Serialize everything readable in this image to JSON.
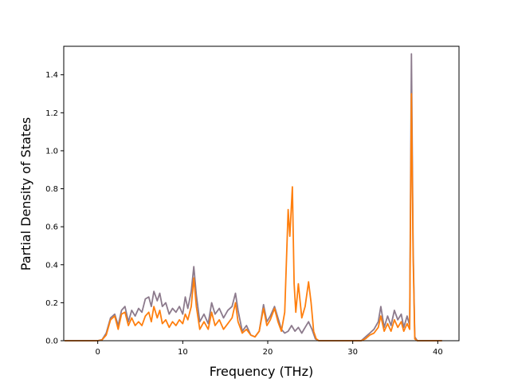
{
  "chart_data": {
    "type": "line",
    "title": "",
    "xlabel": "Frequency (THz)",
    "ylabel": "Partial Density of States",
    "xlim": [
      -4,
      42.5
    ],
    "ylim": [
      0,
      1.55
    ],
    "xticks": [
      0,
      10,
      20,
      30,
      40
    ],
    "yticks": [
      0.0,
      0.2,
      0.4,
      0.6,
      0.8,
      1.0,
      1.2,
      1.4
    ],
    "grid": false,
    "legend": "none",
    "series": [
      {
        "color": "#8c7a8c",
        "points": [
          [
            -3.9,
            0
          ],
          [
            0,
            0
          ],
          [
            0.5,
            0.005
          ],
          [
            1.0,
            0.04
          ],
          [
            1.5,
            0.12
          ],
          [
            2.0,
            0.14
          ],
          [
            2.4,
            0.08
          ],
          [
            2.8,
            0.16
          ],
          [
            3.2,
            0.18
          ],
          [
            3.6,
            0.1
          ],
          [
            4.0,
            0.16
          ],
          [
            4.4,
            0.13
          ],
          [
            4.8,
            0.17
          ],
          [
            5.2,
            0.15
          ],
          [
            5.6,
            0.22
          ],
          [
            6.0,
            0.23
          ],
          [
            6.3,
            0.18
          ],
          [
            6.6,
            0.26
          ],
          [
            7.0,
            0.21
          ],
          [
            7.3,
            0.25
          ],
          [
            7.6,
            0.18
          ],
          [
            8.0,
            0.2
          ],
          [
            8.4,
            0.14
          ],
          [
            8.8,
            0.17
          ],
          [
            9.2,
            0.15
          ],
          [
            9.6,
            0.18
          ],
          [
            10.0,
            0.14
          ],
          [
            10.3,
            0.23
          ],
          [
            10.6,
            0.17
          ],
          [
            11.0,
            0.26
          ],
          [
            11.3,
            0.39
          ],
          [
            11.6,
            0.24
          ],
          [
            12.0,
            0.1
          ],
          [
            12.5,
            0.14
          ],
          [
            13.0,
            0.09
          ],
          [
            13.4,
            0.2
          ],
          [
            13.8,
            0.14
          ],
          [
            14.3,
            0.17
          ],
          [
            14.8,
            0.12
          ],
          [
            15.3,
            0.16
          ],
          [
            15.8,
            0.18
          ],
          [
            16.2,
            0.25
          ],
          [
            16.5,
            0.16
          ],
          [
            17.0,
            0.05
          ],
          [
            17.5,
            0.08
          ],
          [
            18.0,
            0.03
          ],
          [
            18.5,
            0.02
          ],
          [
            19.0,
            0.05
          ],
          [
            19.5,
            0.19
          ],
          [
            19.9,
            0.1
          ],
          [
            20.3,
            0.13
          ],
          [
            20.8,
            0.18
          ],
          [
            21.2,
            0.12
          ],
          [
            21.6,
            0.06
          ],
          [
            22.0,
            0.04
          ],
          [
            22.4,
            0.05
          ],
          [
            22.8,
            0.08
          ],
          [
            23.2,
            0.05
          ],
          [
            23.6,
            0.07
          ],
          [
            24.0,
            0.04
          ],
          [
            24.4,
            0.07
          ],
          [
            24.8,
            0.1
          ],
          [
            25.2,
            0.06
          ],
          [
            25.6,
            0.01
          ],
          [
            26.0,
            0
          ],
          [
            31.0,
            0
          ],
          [
            31.5,
            0.02
          ],
          [
            32.0,
            0.04
          ],
          [
            32.5,
            0.06
          ],
          [
            33.0,
            0.1
          ],
          [
            33.3,
            0.18
          ],
          [
            33.7,
            0.07
          ],
          [
            34.1,
            0.13
          ],
          [
            34.5,
            0.08
          ],
          [
            34.9,
            0.16
          ],
          [
            35.3,
            0.11
          ],
          [
            35.7,
            0.14
          ],
          [
            36.0,
            0.07
          ],
          [
            36.4,
            0.13
          ],
          [
            36.7,
            0.08
          ],
          [
            36.9,
            1.51
          ],
          [
            37.1,
            0.5
          ],
          [
            37.3,
            0.02
          ],
          [
            37.6,
            0
          ],
          [
            40.5,
            0
          ]
        ]
      },
      {
        "color": "#ff7f0e",
        "points": [
          [
            -3.9,
            0
          ],
          [
            0,
            0
          ],
          [
            0.5,
            0.004
          ],
          [
            1.0,
            0.03
          ],
          [
            1.5,
            0.11
          ],
          [
            2.0,
            0.13
          ],
          [
            2.4,
            0.06
          ],
          [
            2.8,
            0.14
          ],
          [
            3.2,
            0.15
          ],
          [
            3.6,
            0.08
          ],
          [
            4.0,
            0.12
          ],
          [
            4.4,
            0.08
          ],
          [
            4.8,
            0.1
          ],
          [
            5.2,
            0.08
          ],
          [
            5.6,
            0.13
          ],
          [
            6.0,
            0.15
          ],
          [
            6.3,
            0.1
          ],
          [
            6.6,
            0.18
          ],
          [
            7.0,
            0.12
          ],
          [
            7.3,
            0.16
          ],
          [
            7.6,
            0.09
          ],
          [
            8.0,
            0.11
          ],
          [
            8.4,
            0.07
          ],
          [
            8.8,
            0.1
          ],
          [
            9.2,
            0.08
          ],
          [
            9.6,
            0.11
          ],
          [
            10.0,
            0.09
          ],
          [
            10.3,
            0.14
          ],
          [
            10.6,
            0.11
          ],
          [
            11.0,
            0.18
          ],
          [
            11.3,
            0.33
          ],
          [
            11.6,
            0.18
          ],
          [
            12.0,
            0.06
          ],
          [
            12.5,
            0.1
          ],
          [
            13.0,
            0.06
          ],
          [
            13.4,
            0.15
          ],
          [
            13.8,
            0.08
          ],
          [
            14.3,
            0.11
          ],
          [
            14.8,
            0.06
          ],
          [
            15.3,
            0.09
          ],
          [
            15.8,
            0.12
          ],
          [
            16.2,
            0.2
          ],
          [
            16.5,
            0.1
          ],
          [
            17.0,
            0.04
          ],
          [
            17.5,
            0.06
          ],
          [
            18.0,
            0.03
          ],
          [
            18.5,
            0.02
          ],
          [
            19.0,
            0.05
          ],
          [
            19.5,
            0.17
          ],
          [
            19.9,
            0.08
          ],
          [
            20.3,
            0.11
          ],
          [
            20.8,
            0.17
          ],
          [
            21.2,
            0.1
          ],
          [
            21.6,
            0.05
          ],
          [
            22.0,
            0.15
          ],
          [
            22.4,
            0.69
          ],
          [
            22.6,
            0.55
          ],
          [
            22.9,
            0.81
          ],
          [
            23.1,
            0.3
          ],
          [
            23.3,
            0.15
          ],
          [
            23.6,
            0.3
          ],
          [
            24.0,
            0.12
          ],
          [
            24.4,
            0.18
          ],
          [
            24.8,
            0.31
          ],
          [
            25.1,
            0.2
          ],
          [
            25.4,
            0.05
          ],
          [
            25.7,
            0.01
          ],
          [
            26.0,
            0
          ],
          [
            31.0,
            0
          ],
          [
            31.5,
            0.01
          ],
          [
            32.0,
            0.03
          ],
          [
            32.5,
            0.04
          ],
          [
            33.0,
            0.07
          ],
          [
            33.3,
            0.13
          ],
          [
            33.7,
            0.05
          ],
          [
            34.1,
            0.09
          ],
          [
            34.5,
            0.05
          ],
          [
            34.9,
            0.11
          ],
          [
            35.3,
            0.07
          ],
          [
            35.7,
            0.1
          ],
          [
            36.0,
            0.05
          ],
          [
            36.4,
            0.09
          ],
          [
            36.7,
            0.06
          ],
          [
            36.9,
            1.3
          ],
          [
            37.1,
            0.45
          ],
          [
            37.3,
            0.01
          ],
          [
            37.6,
            0
          ],
          [
            40.5,
            0
          ]
        ]
      }
    ]
  }
}
